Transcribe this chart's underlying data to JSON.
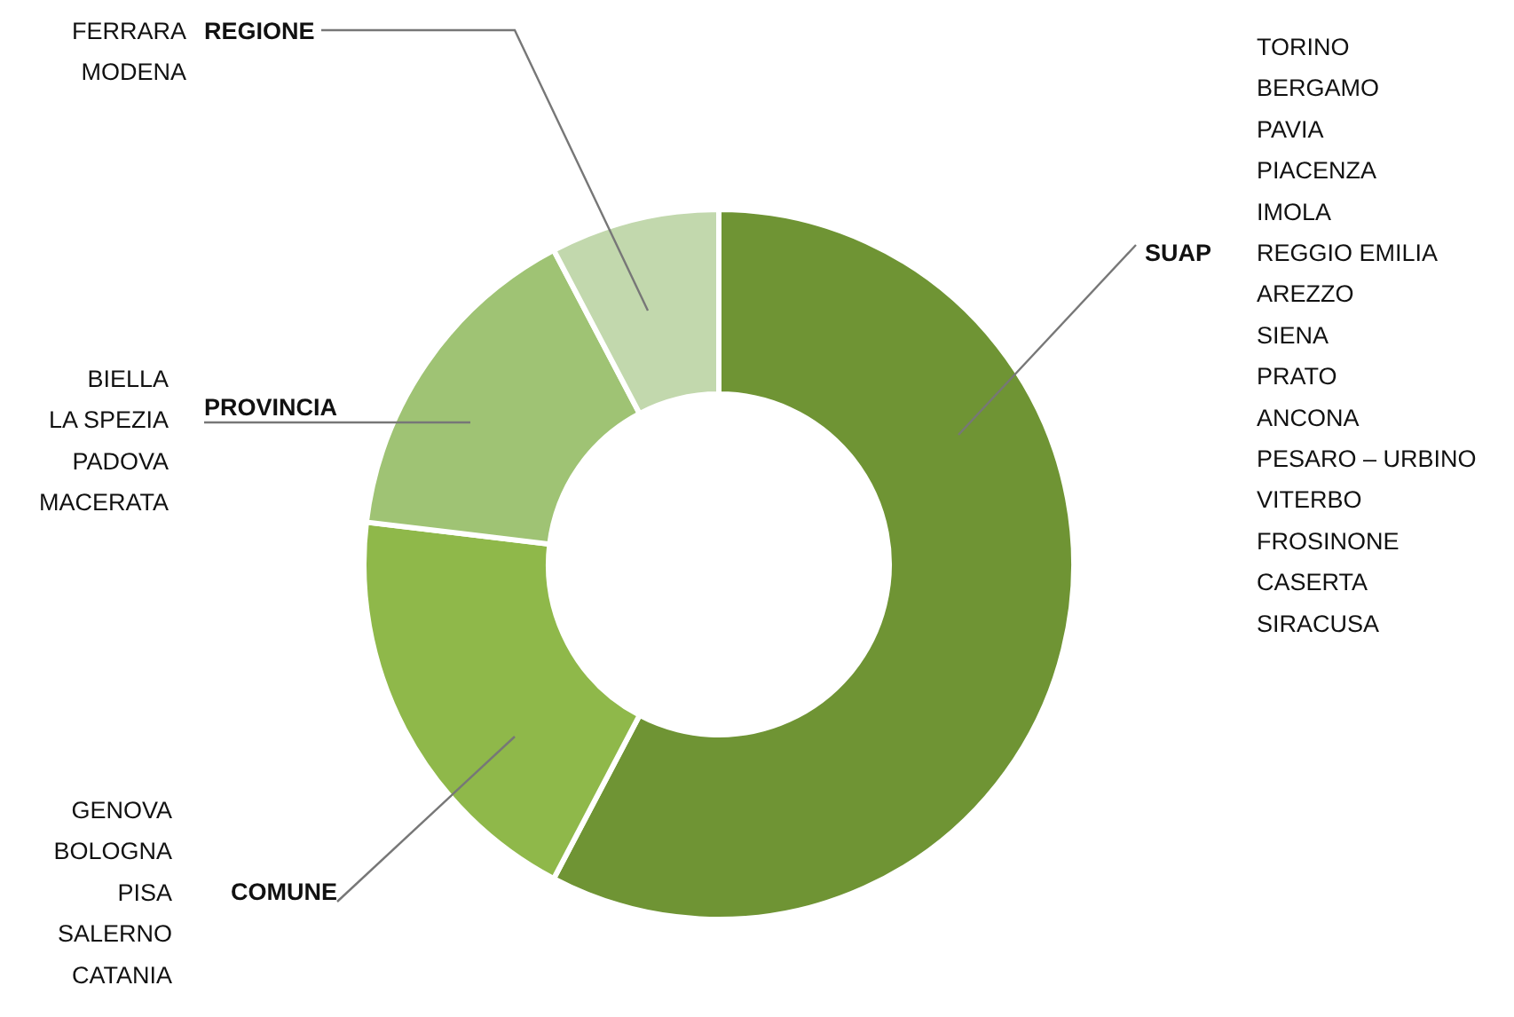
{
  "chart_data": {
    "type": "donut",
    "categories": [
      "SUAP",
      "COMUNE",
      "PROVINCIA",
      "REGIONE"
    ],
    "values": [
      57.7,
      19.2,
      15.4,
      7.7
    ],
    "colors": [
      "#6f9434",
      "#8fb84a",
      "#9fc374",
      "#c2d8ad"
    ],
    "annotations": [
      "TORINO\nBERGAMO\nPAVIA\nPIACENZA\nIMOLA\nREGGIO EMILIA\nAREZZO\nSIENA\nPRATO\nANCONA\nPESARO – URBINO\nVITERBO\nFROSINONE\nCASERTA\nSIRACUSA",
      "GENOVA\nBOLOGNA\nPISA\nSALERNO\nCATANIA",
      "BIELLA\nLA SPEZIA\nPADOVA\nMACERATA",
      "FERRARA\nMODENA"
    ],
    "legend": false
  }
}
